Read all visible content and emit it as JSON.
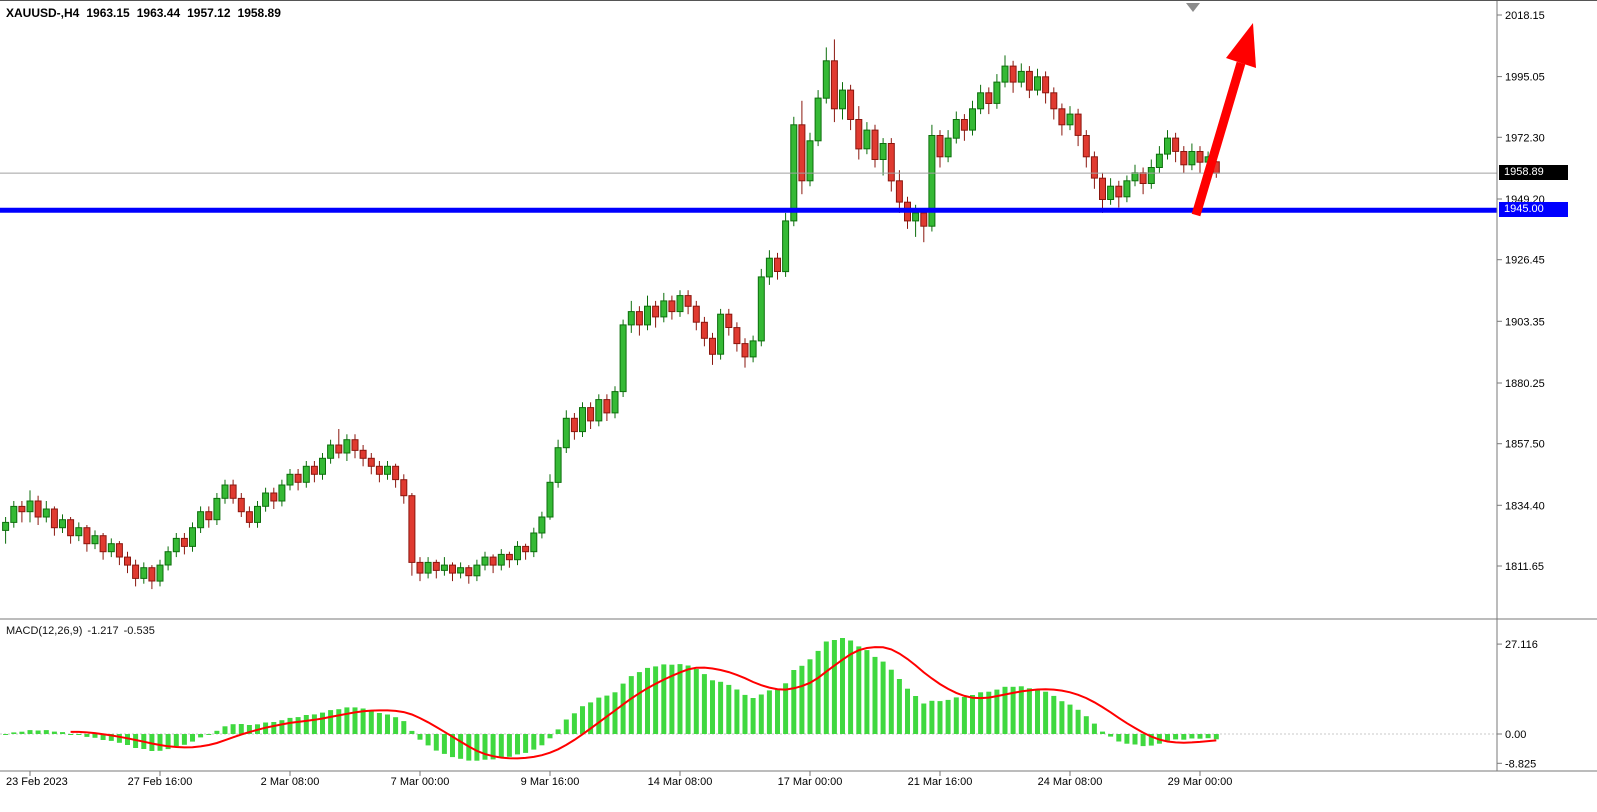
{
  "header": {
    "symbol_period": "XAUUSD-,H4",
    "open": "1963.15",
    "high": "1963.44",
    "low": "1957.12",
    "close": "1958.89"
  },
  "price_axis": {
    "current_price": "1958.89",
    "hline_label": "1945.00"
  },
  "macd_panel": {
    "label": "MACD(12,26,9)",
    "main_value": "-1.217",
    "signal_value": "-0.535"
  },
  "colors": {
    "bull_fill": "#35b935",
    "bull_stroke": "#0c6e0c",
    "bear_fill": "#e03a30",
    "bear_stroke": "#8a160e",
    "macd_hist": "#3fd83f",
    "macd_signal": "#ff0000",
    "hline": "#0000ff",
    "arrow": "#ff0000",
    "current_price_line": "#a0a0a0",
    "badge_current_bg": "#000000",
    "badge_hline_bg": "#0000ff",
    "axis_line": "#787878",
    "shift_marker": "#8c8c8c",
    "text": "#000000"
  },
  "chart_data": {
    "type": "candlestick",
    "symbol": "XAUUSD",
    "timeframe": "H4",
    "title_ohlc": {
      "open": 1963.15,
      "high": 1963.44,
      "low": 1957.12,
      "close": 1958.89
    },
    "y_axis_labels": [
      "2018.15",
      "1995.05",
      "1972.30",
      "1949.20",
      "1926.45",
      "1903.35",
      "1880.25",
      "1857.50",
      "1834.40",
      "1811.65"
    ],
    "x_tick_labels": [
      "23 Feb 2023",
      "27 Feb 16:00",
      "2 Mar 08:00",
      "7 Mar 00:00",
      "9 Mar 16:00",
      "14 Mar 08:00",
      "17 Mar 00:00",
      "21 Mar 16:00",
      "24 Mar 08:00",
      "29 Mar 00:00"
    ],
    "x_tick_candle_indices": [
      3,
      19,
      35,
      51,
      67,
      83,
      99,
      115,
      131,
      147
    ],
    "current_price": 1958.89,
    "hline_value": 1945.0,
    "macd": {
      "fast": 12,
      "slow": 26,
      "signal": 9,
      "axis_labels": [
        "27.116",
        "0.00",
        "-8.825"
      ],
      "last_main": -1.217,
      "last_signal": -0.535
    },
    "annotations": [
      {
        "type": "horizontal-line",
        "price": 1945.0,
        "color": "#0000ff"
      },
      {
        "type": "arrow-up",
        "color": "#ff0000",
        "position": "from-blue-line-to-top-right"
      }
    ],
    "candles_ohlc": [
      [
        1825,
        1830,
        1820,
        1828
      ],
      [
        1828,
        1836,
        1826,
        1834
      ],
      [
        1834,
        1836,
        1828,
        1832
      ],
      [
        1832,
        1840,
        1828,
        1836
      ],
      [
        1836,
        1838,
        1827,
        1830
      ],
      [
        1830,
        1836,
        1828,
        1833
      ],
      [
        1833,
        1834,
        1823,
        1826
      ],
      [
        1826,
        1831,
        1824,
        1829
      ],
      [
        1829,
        1830,
        1820,
        1823
      ],
      [
        1823,
        1828,
        1821,
        1826
      ],
      [
        1826,
        1827,
        1817,
        1820
      ],
      [
        1820,
        1825,
        1818,
        1823
      ],
      [
        1823,
        1824,
        1814,
        1817
      ],
      [
        1817,
        1822,
        1815,
        1820
      ],
      [
        1820,
        1821,
        1812,
        1815
      ],
      [
        1815,
        1817,
        1809,
        1812
      ],
      [
        1812,
        1814,
        1804,
        1807
      ],
      [
        1807,
        1813,
        1805,
        1811
      ],
      [
        1811,
        1812,
        1803,
        1806
      ],
      [
        1806,
        1814,
        1804,
        1812
      ],
      [
        1812,
        1819,
        1810,
        1817
      ],
      [
        1817,
        1824,
        1815,
        1822
      ],
      [
        1822,
        1824,
        1816,
        1819
      ],
      [
        1819,
        1828,
        1817,
        1826
      ],
      [
        1826,
        1834,
        1824,
        1832
      ],
      [
        1832,
        1834,
        1826,
        1829
      ],
      [
        1829,
        1839,
        1827,
        1837
      ],
      [
        1837,
        1844,
        1835,
        1842
      ],
      [
        1842,
        1844,
        1835,
        1837
      ],
      [
        1837,
        1839,
        1830,
        1832
      ],
      [
        1832,
        1834,
        1826,
        1828
      ],
      [
        1828,
        1836,
        1826,
        1834
      ],
      [
        1834,
        1841,
        1832,
        1839
      ],
      [
        1839,
        1841,
        1833,
        1836
      ],
      [
        1836,
        1844,
        1834,
        1842
      ],
      [
        1842,
        1848,
        1840,
        1846
      ],
      [
        1846,
        1848,
        1840,
        1843
      ],
      [
        1843,
        1851,
        1841,
        1849
      ],
      [
        1849,
        1851,
        1843,
        1846
      ],
      [
        1846,
        1854,
        1844,
        1852
      ],
      [
        1852,
        1859,
        1850,
        1857
      ],
      [
        1857,
        1863,
        1852,
        1854
      ],
      [
        1854,
        1861,
        1851,
        1859
      ],
      [
        1859,
        1861,
        1852,
        1855
      ],
      [
        1855,
        1857,
        1849,
        1852
      ],
      [
        1852,
        1854,
        1846,
        1849
      ],
      [
        1849,
        1851,
        1843,
        1846
      ],
      [
        1846,
        1851,
        1844,
        1849
      ],
      [
        1849,
        1850,
        1841,
        1844
      ],
      [
        1844,
        1846,
        1835,
        1838
      ],
      [
        1838,
        1839,
        1808,
        1813
      ],
      [
        1813,
        1815,
        1806,
        1809
      ],
      [
        1809,
        1815,
        1807,
        1813
      ],
      [
        1813,
        1814,
        1807,
        1810
      ],
      [
        1810,
        1815,
        1808,
        1812
      ],
      [
        1812,
        1813,
        1806,
        1809
      ],
      [
        1809,
        1813,
        1807,
        1811
      ],
      [
        1811,
        1812,
        1805,
        1808
      ],
      [
        1808,
        1814,
        1806,
        1812
      ],
      [
        1812,
        1817,
        1810,
        1815
      ],
      [
        1815,
        1816,
        1809,
        1812
      ],
      [
        1812,
        1818,
        1810,
        1816
      ],
      [
        1816,
        1817,
        1811,
        1814
      ],
      [
        1814,
        1821,
        1812,
        1819
      ],
      [
        1819,
        1820,
        1814,
        1817
      ],
      [
        1817,
        1826,
        1815,
        1824
      ],
      [
        1824,
        1832,
        1822,
        1830
      ],
      [
        1830,
        1846,
        1829,
        1843
      ],
      [
        1843,
        1859,
        1841,
        1856
      ],
      [
        1856,
        1870,
        1854,
        1867
      ],
      [
        1867,
        1869,
        1859,
        1862
      ],
      [
        1862,
        1873,
        1860,
        1871
      ],
      [
        1871,
        1873,
        1863,
        1866
      ],
      [
        1866,
        1876,
        1864,
        1874
      ],
      [
        1874,
        1876,
        1866,
        1869
      ],
      [
        1869,
        1879,
        1867,
        1877
      ],
      [
        1877,
        1904,
        1875,
        1902
      ],
      [
        1902,
        1911,
        1899,
        1907
      ],
      [
        1907,
        1909,
        1898,
        1902
      ],
      [
        1902,
        1913,
        1900,
        1909
      ],
      [
        1909,
        1911,
        1901,
        1905
      ],
      [
        1905,
        1914,
        1903,
        1911
      ],
      [
        1911,
        1913,
        1904,
        1907
      ],
      [
        1907,
        1915,
        1905,
        1913
      ],
      [
        1913,
        1915,
        1906,
        1909
      ],
      [
        1909,
        1911,
        1900,
        1903
      ],
      [
        1903,
        1905,
        1894,
        1897
      ],
      [
        1897,
        1899,
        1887,
        1891
      ],
      [
        1891,
        1908,
        1889,
        1906
      ],
      [
        1906,
        1908,
        1898,
        1901
      ],
      [
        1901,
        1903,
        1892,
        1895
      ],
      [
        1895,
        1897,
        1886,
        1890
      ],
      [
        1890,
        1898,
        1888,
        1896
      ],
      [
        1896,
        1923,
        1894,
        1920
      ],
      [
        1920,
        1930,
        1917,
        1927
      ],
      [
        1927,
        1929,
        1919,
        1922
      ],
      [
        1922,
        1944,
        1920,
        1941
      ],
      [
        1941,
        1980,
        1939,
        1977
      ],
      [
        1977,
        1986,
        1951,
        1956
      ],
      [
        1956,
        1974,
        1954,
        1971
      ],
      [
        1971,
        1990,
        1969,
        1987
      ],
      [
        1987,
        2006,
        1985,
        2001
      ],
      [
        2001,
        2009,
        1978,
        1983
      ],
      [
        1983,
        1993,
        1979,
        1990
      ],
      [
        1990,
        1992,
        1975,
        1979
      ],
      [
        1979,
        1984,
        1964,
        1968
      ],
      [
        1968,
        1978,
        1966,
        1975
      ],
      [
        1975,
        1977,
        1961,
        1964
      ],
      [
        1964,
        1972,
        1958,
        1970
      ],
      [
        1970,
        1972,
        1952,
        1956
      ],
      [
        1956,
        1960,
        1944,
        1948
      ],
      [
        1948,
        1950,
        1938,
        1941
      ],
      [
        1941,
        1947,
        1935,
        1944
      ],
      [
        1944,
        1945,
        1933,
        1939
      ],
      [
        1939,
        1977,
        1937,
        1973
      ],
      [
        1973,
        1975,
        1961,
        1965
      ],
      [
        1965,
        1975,
        1963,
        1972
      ],
      [
        1972,
        1982,
        1970,
        1979
      ],
      [
        1979,
        1981,
        1971,
        1975
      ],
      [
        1975,
        1986,
        1973,
        1983
      ],
      [
        1983,
        1992,
        1981,
        1989
      ],
      [
        1989,
        1991,
        1981,
        1985
      ],
      [
        1985,
        1996,
        1983,
        1993
      ],
      [
        1993,
        2003,
        1991,
        1999
      ],
      [
        1999,
        2001,
        1989,
        1993
      ],
      [
        1993,
        2000,
        1991,
        1997
      ],
      [
        1997,
        1999,
        1987,
        1990
      ],
      [
        1990,
        1998,
        1988,
        1995
      ],
      [
        1995,
        1997,
        1985,
        1989
      ],
      [
        1989,
        1991,
        1979,
        1983
      ],
      [
        1983,
        1985,
        1973,
        1977
      ],
      [
        1977,
        1984,
        1975,
        1981
      ],
      [
        1981,
        1983,
        1969,
        1973
      ],
      [
        1973,
        1975,
        1961,
        1965
      ],
      [
        1965,
        1967,
        1953,
        1957
      ],
      [
        1957,
        1959,
        1944,
        1949
      ],
      [
        1949,
        1957,
        1947,
        1954
      ],
      [
        1954,
        1956,
        1946,
        1950
      ],
      [
        1950,
        1958,
        1948,
        1956
      ],
      [
        1956,
        1962,
        1954,
        1959
      ],
      [
        1959,
        1961,
        1951,
        1955
      ],
      [
        1955,
        1964,
        1953,
        1961
      ],
      [
        1961,
        1969,
        1959,
        1966
      ],
      [
        1966,
        1975,
        1964,
        1972
      ],
      [
        1972,
        1974,
        1963,
        1967
      ],
      [
        1967,
        1969,
        1959,
        1962
      ],
      [
        1962,
        1970,
        1960,
        1967
      ],
      [
        1967,
        1969,
        1959,
        1963
      ],
      [
        1963,
        1967,
        1957,
        1965
      ],
      [
        1963.15,
        1963.44,
        1957.12,
        1958.89
      ]
    ]
  }
}
